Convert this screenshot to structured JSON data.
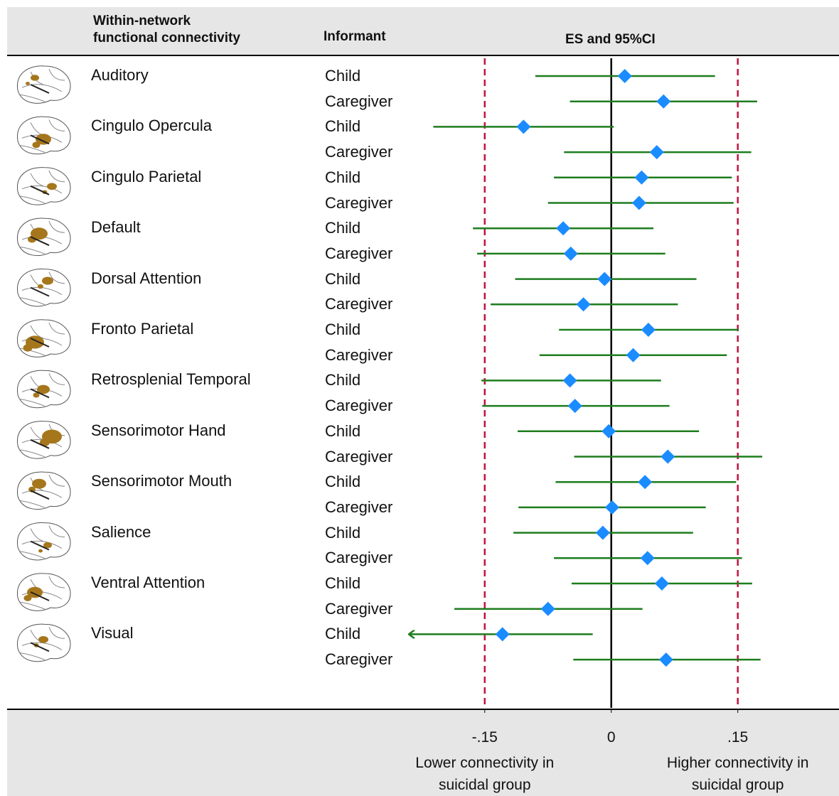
{
  "chart_data": {
    "type": "forest",
    "column_headers": {
      "network": "Within-network functional connectivity",
      "informant": "Informant",
      "effect": "ES and 95%CI"
    },
    "groups": [
      {
        "name": "Auditory",
        "rows": [
          {
            "informant": "Child",
            "es": 0.016,
            "lo": -0.09,
            "hi": 0.123
          },
          {
            "informant": "Caregiver",
            "es": 0.062,
            "lo": -0.049,
            "hi": 0.173
          }
        ]
      },
      {
        "name": "Cingulo Opercula",
        "rows": [
          {
            "informant": "Child",
            "es": -0.104,
            "lo": -0.211,
            "hi": 0.003
          },
          {
            "informant": "Caregiver",
            "es": 0.054,
            "lo": -0.056,
            "hi": 0.166
          }
        ]
      },
      {
        "name": "Cingulo Parietal",
        "rows": [
          {
            "informant": "Child",
            "es": 0.036,
            "lo": -0.068,
            "hi": 0.143
          },
          {
            "informant": "Caregiver",
            "es": 0.033,
            "lo": -0.075,
            "hi": 0.145
          }
        ]
      },
      {
        "name": "Default",
        "rows": [
          {
            "informant": "Child",
            "es": -0.057,
            "lo": -0.164,
            "hi": 0.05
          },
          {
            "informant": "Caregiver",
            "es": -0.048,
            "lo": -0.159,
            "hi": 0.064
          }
        ]
      },
      {
        "name": "Dorsal Attention",
        "rows": [
          {
            "informant": "Child",
            "es": -0.008,
            "lo": -0.114,
            "hi": 0.101
          },
          {
            "informant": "Caregiver",
            "es": -0.033,
            "lo": -0.143,
            "hi": 0.079
          }
        ]
      },
      {
        "name": "Fronto Parietal",
        "rows": [
          {
            "informant": "Child",
            "es": 0.044,
            "lo": -0.062,
            "hi": 0.151
          },
          {
            "informant": "Caregiver",
            "es": 0.026,
            "lo": -0.085,
            "hi": 0.137
          }
        ]
      },
      {
        "name": "Retrosplenial Temporal",
        "rows": [
          {
            "informant": "Child",
            "es": -0.049,
            "lo": -0.154,
            "hi": 0.059
          },
          {
            "informant": "Caregiver",
            "es": -0.043,
            "lo": -0.153,
            "hi": 0.069
          }
        ]
      },
      {
        "name": "Sensorimotor Hand",
        "rows": [
          {
            "informant": "Child",
            "es": -0.003,
            "lo": -0.111,
            "hi": 0.104
          },
          {
            "informant": "Caregiver",
            "es": 0.067,
            "lo": -0.044,
            "hi": 0.179
          }
        ]
      },
      {
        "name": "Sensorimotor Mouth",
        "rows": [
          {
            "informant": "Child",
            "es": 0.04,
            "lo": -0.066,
            "hi": 0.148
          },
          {
            "informant": "Caregiver",
            "es": 0.001,
            "lo": -0.11,
            "hi": 0.112
          }
        ]
      },
      {
        "name": "Salience",
        "rows": [
          {
            "informant": "Child",
            "es": -0.01,
            "lo": -0.116,
            "hi": 0.097
          },
          {
            "informant": "Caregiver",
            "es": 0.043,
            "lo": -0.068,
            "hi": 0.155
          }
        ]
      },
      {
        "name": "Ventral Attention",
        "rows": [
          {
            "informant": "Child",
            "es": 0.06,
            "lo": -0.047,
            "hi": 0.167
          },
          {
            "informant": "Caregiver",
            "es": -0.075,
            "lo": -0.186,
            "hi": 0.037
          }
        ]
      },
      {
        "name": "Visual",
        "rows": [
          {
            "informant": "Child",
            "es": -0.129,
            "lo": -0.26,
            "hi": -0.022
          },
          {
            "informant": "Caregiver",
            "es": 0.065,
            "lo": -0.045,
            "hi": 0.177
          }
        ]
      }
    ],
    "xlim": [
      -0.24,
      0.27
    ],
    "xticks": [
      {
        "value": -0.15,
        "label": "-.15"
      },
      0,
      {
        "value": 0.15,
        "label": ".15"
      }
    ],
    "reference_lines": [
      {
        "value": -0.15,
        "color": "#c0143c",
        "style": "dashed"
      },
      {
        "value": 0,
        "color": "#000000",
        "style": "solid"
      },
      {
        "value": 0.15,
        "color": "#c0143c",
        "style": "dashed"
      }
    ],
    "x_labels": {
      "left": "Lower connectivity in suicidal group",
      "right": "Higher connectivity in suicidal group"
    },
    "ci_color": "#1e7d1e",
    "point_color": "#1a8cff"
  }
}
